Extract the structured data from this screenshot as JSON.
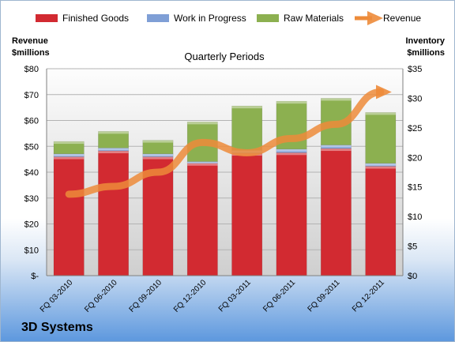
{
  "company": "3D Systems",
  "chart_data": {
    "type": "bar",
    "stacked": true,
    "title": "Quarterly Periods",
    "left_axis": {
      "label_lines": [
        "Revenue",
        "$millions"
      ],
      "min": 0,
      "max": 80,
      "step": 10,
      "format": "dollar",
      "zero_label": "$-"
    },
    "right_axis": {
      "label_lines": [
        "Inventory",
        "$millions"
      ],
      "min": 0,
      "max": 35,
      "step": 5,
      "format": "dollar"
    },
    "legend_position": "top",
    "categories": [
      "FQ 03-2010",
      "FQ 06-2010",
      "FQ 09-2010",
      "FQ 12-2010",
      "FQ 03-2011",
      "FQ 06-2011",
      "FQ 09-2011",
      "FQ 12-2011"
    ],
    "series": [
      {
        "name": "Finished Goods",
        "axis": "right",
        "color": "#d22a31",
        "values": [
          20.1,
          21.1,
          20.1,
          19.0,
          20.7,
          20.8,
          21.5,
          18.5
        ]
      },
      {
        "name": "Work in Progress",
        "axis": "right",
        "color": "#7f9fd6",
        "values": [
          0.5,
          0.5,
          0.5,
          0.3,
          0.5,
          0.6,
          0.6,
          0.5
        ]
      },
      {
        "name": "Raw Materials",
        "axis": "right",
        "color": "#8cb050",
        "values": [
          2.1,
          2.8,
          2.3,
          6.7,
          7.5,
          8.1,
          7.9,
          8.6
        ]
      },
      {
        "name": "Revenue",
        "axis": "left",
        "type": "line",
        "color": "#ed8b3a",
        "values": [
          31.5,
          34.5,
          40.0,
          51.5,
          47.5,
          53.0,
          58.5,
          71.0
        ]
      }
    ]
  }
}
